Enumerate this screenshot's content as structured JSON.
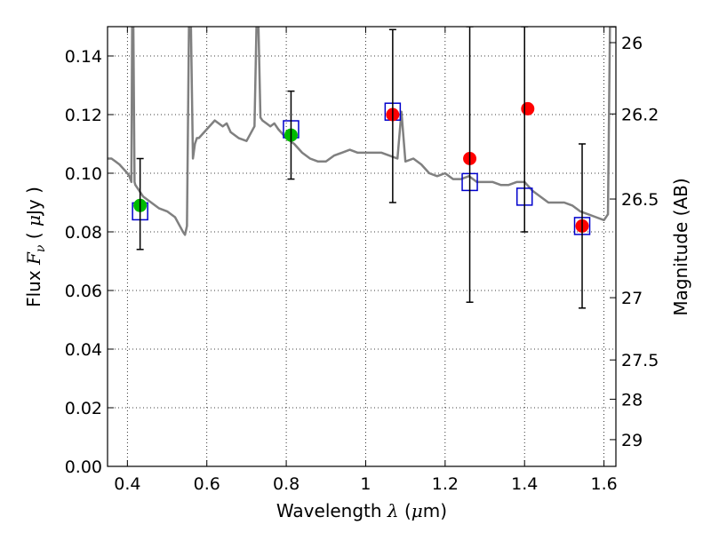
{
  "chart_data": {
    "type": "scatter",
    "title": "",
    "xlabel": "Wavelength  λ (μm)",
    "ylabel": "Flux  Fν  ( μJy )",
    "y2label": "Magnitude (AB)",
    "xlim": [
      0.35,
      1.63
    ],
    "ylim": [
      0.0,
      0.15
    ],
    "grid": true,
    "x_ticks": [
      0.4,
      0.6,
      0.8,
      1.0,
      1.2,
      1.4,
      1.6
    ],
    "x_tick_labels": [
      "0.4",
      "0.6",
      "0.8",
      "1",
      "1.2",
      "1.4",
      "1.6"
    ],
    "y_ticks": [
      0.0,
      0.02,
      0.04,
      0.06,
      0.08,
      0.1,
      0.12,
      0.14
    ],
    "y_tick_labels": [
      "0.00",
      "0.02",
      "0.04",
      "0.06",
      "0.08",
      "0.10",
      "0.12",
      "0.14"
    ],
    "y2_ticks": [
      26,
      26.2,
      26.5,
      27,
      27.5,
      28,
      29
    ],
    "y2_tick_labels": [
      "26",
      "26.2",
      "26.5",
      "27",
      "27.5",
      "28",
      "29"
    ],
    "series": [
      {
        "kind": "line",
        "color": "#808080",
        "x": [
          0.35,
          0.36,
          0.37,
          0.38,
          0.4,
          0.405,
          0.41,
          0.412,
          0.415,
          0.418,
          0.42,
          0.43,
          0.44,
          0.46,
          0.48,
          0.5,
          0.52,
          0.54,
          0.545,
          0.55,
          0.555,
          0.56,
          0.565,
          0.57,
          0.575,
          0.58,
          0.6,
          0.62,
          0.64,
          0.65,
          0.66,
          0.68,
          0.7,
          0.72,
          0.725,
          0.73,
          0.735,
          0.74,
          0.75,
          0.76,
          0.77,
          0.78,
          0.8,
          0.82,
          0.84,
          0.86,
          0.88,
          0.9,
          0.92,
          0.94,
          0.96,
          0.98,
          1.0,
          1.02,
          1.04,
          1.06,
          1.08,
          1.09,
          1.1,
          1.12,
          1.14,
          1.16,
          1.18,
          1.2,
          1.22,
          1.24,
          1.26,
          1.28,
          1.3,
          1.32,
          1.34,
          1.36,
          1.38,
          1.4,
          1.42,
          1.44,
          1.46,
          1.48,
          1.5,
          1.52,
          1.54,
          1.56,
          1.58,
          1.6,
          1.61,
          1.615,
          1.62,
          1.63
        ],
        "y": [
          0.105,
          0.105,
          0.104,
          0.103,
          0.1,
          0.099,
          0.097,
          0.15,
          0.15,
          0.097,
          0.096,
          0.094,
          0.092,
          0.09,
          0.088,
          0.087,
          0.085,
          0.08,
          0.079,
          0.082,
          0.15,
          0.15,
          0.105,
          0.11,
          0.112,
          0.112,
          0.115,
          0.118,
          0.116,
          0.117,
          0.114,
          0.112,
          0.111,
          0.116,
          0.15,
          0.15,
          0.119,
          0.118,
          0.117,
          0.116,
          0.117,
          0.115,
          0.112,
          0.11,
          0.107,
          0.105,
          0.104,
          0.104,
          0.106,
          0.107,
          0.108,
          0.107,
          0.107,
          0.107,
          0.107,
          0.106,
          0.105,
          0.121,
          0.104,
          0.105,
          0.103,
          0.1,
          0.099,
          0.1,
          0.098,
          0.098,
          0.099,
          0.097,
          0.097,
          0.097,
          0.096,
          0.096,
          0.097,
          0.097,
          0.094,
          0.092,
          0.09,
          0.09,
          0.09,
          0.089,
          0.087,
          0.086,
          0.085,
          0.084,
          0.086,
          0.15,
          0.15,
          0.15
        ]
      },
      {
        "kind": "points",
        "marker": "square",
        "color": "#0000cc",
        "x": [
          0.432,
          0.812,
          1.068,
          1.262,
          1.4,
          1.545
        ],
        "y": [
          0.087,
          0.115,
          0.121,
          0.097,
          0.092,
          0.082
        ]
      },
      {
        "kind": "points",
        "marker": "circle",
        "color": "#00bb00",
        "x": [
          0.432,
          0.812
        ],
        "y": [
          0.089,
          0.113
        ]
      },
      {
        "kind": "points",
        "marker": "circle",
        "color": "#ff0000",
        "x": [
          1.068,
          1.262,
          1.408,
          1.545
        ],
        "y": [
          0.12,
          0.105,
          0.122,
          0.082
        ]
      },
      {
        "kind": "errorbars",
        "color": "#000000",
        "x": [
          0.432,
          0.812,
          1.068,
          1.262,
          1.4,
          1.545
        ],
        "y_low": [
          0.074,
          0.098,
          0.09,
          0.056,
          0.08,
          0.054
        ],
        "y_high": [
          0.105,
          0.128,
          0.149,
          0.15,
          0.15,
          0.11
        ]
      }
    ]
  }
}
